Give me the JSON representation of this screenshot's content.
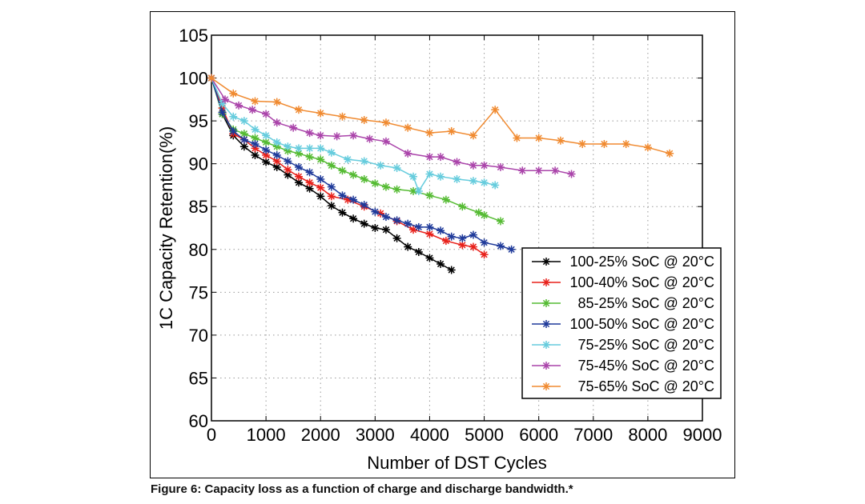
{
  "caption": "Figure 6: Capacity loss as a function of charge and discharge bandwidth.*",
  "chart_data": {
    "type": "line",
    "xlabel": "Number of DST Cycles",
    "ylabel": "1C Capacity Retention(%)",
    "xlim": [
      0,
      9000
    ],
    "ylim": [
      60,
      105
    ],
    "xticks": [
      0,
      1000,
      2000,
      3000,
      4000,
      5000,
      6000,
      7000,
      8000,
      9000
    ],
    "yticks": [
      60,
      65,
      70,
      75,
      80,
      85,
      90,
      95,
      100,
      105
    ],
    "grid": true,
    "legend_position": "bottom-right",
    "marker": "asterisk",
    "series": [
      {
        "name": "100-25% SoC @ 20°C",
        "color": "#000000",
        "x": [
          0,
          200,
          400,
          600,
          800,
          1000,
          1200,
          1400,
          1600,
          1800,
          2000,
          2200,
          2400,
          2600,
          2800,
          3000,
          3200,
          3400,
          3600,
          3800,
          4000,
          4200,
          4400
        ],
        "y": [
          100,
          95.8,
          93.3,
          92.0,
          91.0,
          90.2,
          89.6,
          88.7,
          87.8,
          87.1,
          86.2,
          85.1,
          84.3,
          83.6,
          83.0,
          82.5,
          82.3,
          81.3,
          80.3,
          79.7,
          79.0,
          78.3,
          77.6
        ]
      },
      {
        "name": "100-40% SoC @ 20°C",
        "color": "#e8201a",
        "x": [
          0,
          200,
          400,
          600,
          800,
          1000,
          1200,
          1400,
          1600,
          1800,
          2000,
          2200,
          2500,
          2800,
          3100,
          3400,
          3700,
          4000,
          4300,
          4600,
          4800,
          5000
        ],
        "y": [
          100,
          96.5,
          93.5,
          92.8,
          91.8,
          91.0,
          90.3,
          89.3,
          88.5,
          87.8,
          87.2,
          86.2,
          85.8,
          85.0,
          84.2,
          83.3,
          82.3,
          81.8,
          81.0,
          80.5,
          80.3,
          79.4
        ]
      },
      {
        "name": "85-25% SoC @ 20°C",
        "color": "#55bb33",
        "x": [
          0,
          200,
          400,
          600,
          800,
          1000,
          1200,
          1400,
          1600,
          1800,
          2000,
          2200,
          2400,
          2600,
          2800,
          3000,
          3200,
          3400,
          3700,
          4000,
          4300,
          4600,
          4900,
          5000,
          5300
        ],
        "y": [
          100,
          95.8,
          94.0,
          93.5,
          93.0,
          92.5,
          92.0,
          91.5,
          91.2,
          90.8,
          90.5,
          89.8,
          89.2,
          88.7,
          88.2,
          87.7,
          87.3,
          87.0,
          86.8,
          86.3,
          85.8,
          85.0,
          84.3,
          84.0,
          83.3
        ]
      },
      {
        "name": "100-50% SoC @ 20°C",
        "color": "#1f3a9a",
        "x": [
          0,
          200,
          400,
          600,
          800,
          1000,
          1200,
          1400,
          1600,
          1800,
          2000,
          2200,
          2400,
          2600,
          2800,
          3000,
          3200,
          3400,
          3600,
          3800,
          4000,
          4200,
          4400,
          4600,
          4800,
          5000,
          5300,
          5500
        ],
        "y": [
          100,
          96.0,
          93.8,
          92.8,
          92.3,
          91.6,
          91.0,
          90.3,
          89.6,
          89.0,
          88.2,
          87.3,
          86.3,
          85.8,
          85.2,
          84.4,
          83.8,
          83.4,
          83.0,
          82.6,
          82.6,
          82.2,
          81.5,
          81.3,
          81.7,
          80.8,
          80.4,
          80.0
        ]
      },
      {
        "name": "75-25% SoC @ 20°C",
        "color": "#66ccdd",
        "x": [
          0,
          200,
          400,
          600,
          800,
          1000,
          1200,
          1400,
          1600,
          1800,
          2000,
          2200,
          2500,
          2800,
          3100,
          3400,
          3700,
          3800,
          4000,
          4200,
          4500,
          4800,
          5000,
          5200
        ],
        "y": [
          100,
          97.0,
          95.5,
          95.0,
          94.0,
          93.3,
          92.5,
          92.0,
          91.8,
          91.8,
          91.8,
          91.3,
          90.5,
          90.3,
          89.8,
          89.5,
          88.5,
          86.8,
          88.8,
          88.5,
          88.2,
          88.0,
          87.8,
          87.5
        ]
      },
      {
        "name": "75-45% SoC @ 20°C",
        "color": "#aa44aa",
        "x": [
          0,
          250,
          500,
          750,
          1000,
          1200,
          1500,
          1800,
          2000,
          2300,
          2600,
          2900,
          3200,
          3600,
          4000,
          4200,
          4500,
          4800,
          5000,
          5300,
          5700,
          6000,
          6300,
          6600
        ],
        "y": [
          100,
          97.5,
          96.8,
          96.3,
          95.8,
          94.8,
          94.2,
          93.6,
          93.3,
          93.2,
          93.3,
          92.9,
          92.6,
          91.2,
          90.8,
          90.8,
          90.2,
          89.8,
          89.8,
          89.6,
          89.2,
          89.2,
          89.2,
          88.8
        ]
      },
      {
        "name": "75-65% SoC @ 20°C",
        "color": "#f08a30",
        "x": [
          0,
          400,
          800,
          1200,
          1600,
          2000,
          2400,
          2800,
          3200,
          3600,
          4000,
          4400,
          4800,
          5200,
          5600,
          6000,
          6400,
          6800,
          7200,
          7600,
          8000,
          8400
        ],
        "y": [
          100,
          98.2,
          97.3,
          97.2,
          96.3,
          95.9,
          95.5,
          95.1,
          94.8,
          94.2,
          93.6,
          93.8,
          93.3,
          96.3,
          93.0,
          93.0,
          92.7,
          92.3,
          92.3,
          92.3,
          91.9,
          91.2
        ]
      }
    ]
  }
}
